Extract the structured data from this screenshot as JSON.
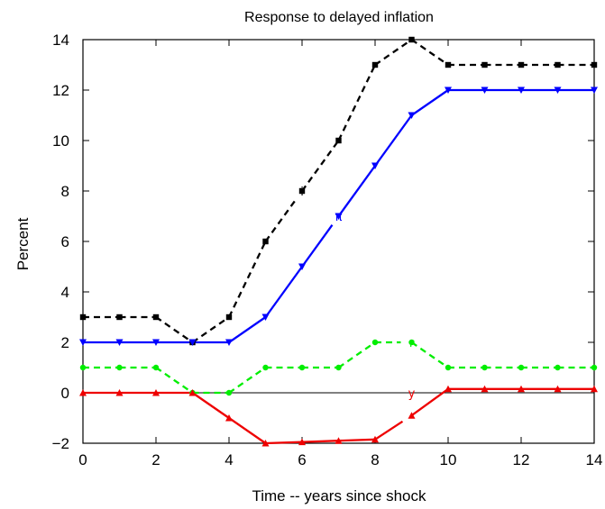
{
  "chart_data": {
    "type": "line",
    "title": "Response to delayed inflation",
    "xlabel": "Time -- years since shock",
    "ylabel": "Percent",
    "xlim": [
      0,
      14
    ],
    "ylim": [
      -2,
      14
    ],
    "xticks": [
      0,
      2,
      4,
      6,
      8,
      10,
      12,
      14
    ],
    "yticks": [
      -2,
      0,
      2,
      4,
      6,
      8,
      10,
      12,
      14
    ],
    "grid": false,
    "zero_line": true,
    "x": [
      0,
      1,
      2,
      3,
      4,
      5,
      6,
      7,
      8,
      9,
      10,
      11,
      12,
      13,
      14
    ],
    "series": [
      {
        "name": "i",
        "color": "#000000",
        "line_style": "dashed",
        "marker": "square",
        "values": [
          3,
          3,
          3,
          2,
          3,
          6,
          8,
          10,
          13,
          14,
          13,
          13,
          13,
          13,
          13
        ],
        "label_at": [
          6,
          8
        ]
      },
      {
        "name": "π",
        "color": "#0000ff",
        "line_style": "solid",
        "marker": "triangle-down",
        "values": [
          2,
          2,
          2,
          2,
          2,
          3,
          5,
          7,
          9,
          11,
          12,
          12,
          12,
          12,
          12
        ],
        "label_at": [
          7,
          7
        ]
      },
      {
        "name": "r",
        "color": "#00ee00",
        "line_style": "dashed",
        "marker": "circle",
        "values": [
          1,
          1,
          1,
          0,
          0,
          1,
          1,
          1,
          2,
          2,
          1,
          1,
          1,
          1,
          1
        ],
        "label_at": [
          9,
          2
        ]
      },
      {
        "name": "y",
        "color": "#ee0000",
        "line_style": "solid",
        "marker": "triangle-up",
        "values": [
          0,
          0,
          0,
          0,
          -1,
          -2,
          -1.95,
          -1.9,
          -1.85,
          -0.9,
          0.15,
          0.15,
          0.15,
          0.15,
          0.15
        ],
        "label_at": [
          9,
          0
        ]
      }
    ]
  }
}
